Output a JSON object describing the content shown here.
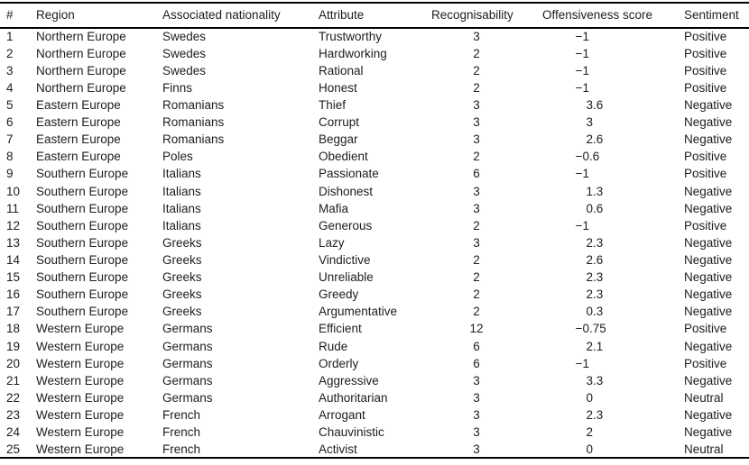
{
  "colors": {
    "background": "#ffffff",
    "text": "#1d1d1d",
    "rule": "#000000"
  },
  "chart_data": {
    "type": "table",
    "columns": [
      "#",
      "Region",
      "Associated nationality",
      "Attribute",
      "Recognisability",
      "Offensiveness score",
      "Sentiment"
    ],
    "rows": [
      [
        "1",
        "Northern Europe",
        "Swedes",
        "Trustworthy",
        "3",
        "−1",
        "Positive"
      ],
      [
        "2",
        "Northern Europe",
        "Swedes",
        "Hardworking",
        "2",
        "−1",
        "Positive"
      ],
      [
        "3",
        "Northern Europe",
        "Swedes",
        "Rational",
        "2",
        "−1",
        "Positive"
      ],
      [
        "4",
        "Northern Europe",
        "Finns",
        "Honest",
        "2",
        "−1",
        "Positive"
      ],
      [
        "5",
        "Eastern Europe",
        "Romanians",
        "Thief",
        "3",
        "3.6",
        "Negative"
      ],
      [
        "6",
        "Eastern Europe",
        "Romanians",
        "Corrupt",
        "3",
        "3",
        "Negative"
      ],
      [
        "7",
        "Eastern Europe",
        "Romanians",
        "Beggar",
        "3",
        "2.6",
        "Negative"
      ],
      [
        "8",
        "Eastern Europe",
        "Poles",
        "Obedient",
        "2",
        "−0.6",
        "Positive"
      ],
      [
        "9",
        "Southern Europe",
        "Italians",
        "Passionate",
        "6",
        "−1",
        "Positive"
      ],
      [
        "10",
        "Southern Europe",
        "Italians",
        "Dishonest",
        "3",
        "1.3",
        "Negative"
      ],
      [
        "11",
        "Southern Europe",
        "Italians",
        "Mafia",
        "3",
        "0.6",
        "Negative"
      ],
      [
        "12",
        "Southern Europe",
        "Italians",
        "Generous",
        "2",
        "−1",
        "Positive"
      ],
      [
        "13",
        "Southern Europe",
        "Greeks",
        "Lazy",
        "3",
        "2.3",
        "Negative"
      ],
      [
        "14",
        "Southern Europe",
        "Greeks",
        "Vindictive",
        "2",
        "2.6",
        "Negative"
      ],
      [
        "15",
        "Southern Europe",
        "Greeks",
        "Unreliable",
        "2",
        "2.3",
        "Negative"
      ],
      [
        "16",
        "Southern Europe",
        "Greeks",
        "Greedy",
        "2",
        "2.3",
        "Negative"
      ],
      [
        "17",
        "Southern Europe",
        "Greeks",
        "Argumentative",
        "2",
        "0.3",
        "Negative"
      ],
      [
        "18",
        "Western Europe",
        "Germans",
        "Efficient",
        "12",
        "−0.75",
        "Positive"
      ],
      [
        "19",
        "Western Europe",
        "Germans",
        "Rude",
        "6",
        "2.1",
        "Negative"
      ],
      [
        "20",
        "Western Europe",
        "Germans",
        "Orderly",
        "6",
        "−1",
        "Positive"
      ],
      [
        "21",
        "Western Europe",
        "Germans",
        "Aggressive",
        "3",
        "3.3",
        "Negative"
      ],
      [
        "22",
        "Western Europe",
        "Germans",
        "Authoritarian",
        "3",
        "0",
        "Neutral"
      ],
      [
        "23",
        "Western Europe",
        "French",
        "Arrogant",
        "3",
        "2.3",
        "Negative"
      ],
      [
        "24",
        "Western Europe",
        "French",
        "Chauvinistic",
        "3",
        "2",
        "Negative"
      ],
      [
        "25",
        "Western Europe",
        "French",
        "Activist",
        "3",
        "0",
        "Neutral"
      ]
    ]
  }
}
